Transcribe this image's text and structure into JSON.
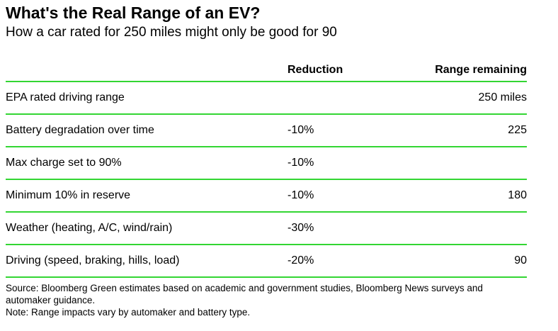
{
  "title": "What's the Real Range of an EV?",
  "subtitle": "How a car rated for 250 miles might only be good for 90",
  "accent_color": "#33d633",
  "chart_data": {
    "type": "table",
    "columns": [
      "",
      "Reduction",
      "Range remaining"
    ],
    "rows": [
      {
        "label": "EPA rated driving range",
        "reduction": "",
        "remaining": "250 miles"
      },
      {
        "label": "Battery degradation over time",
        "reduction": "-10%",
        "remaining": "225"
      },
      {
        "label": "Max charge set to 90%",
        "reduction": "-10%",
        "remaining": ""
      },
      {
        "label": "Minimum 10% in reserve",
        "reduction": "-10%",
        "remaining": "180"
      },
      {
        "label": "Weather (heating, A/C, wind/rain)",
        "reduction": "-30%",
        "remaining": ""
      },
      {
        "label": "Driving (speed, braking, hills, load)",
        "reduction": "-20%",
        "remaining": "90"
      }
    ]
  },
  "footer": {
    "source": "Source: Bloomberg Green estimates based on academic and government studies, Bloomberg News surveys and automaker guidance.",
    "note": "Note: Range impacts vary by automaker and battery type."
  }
}
